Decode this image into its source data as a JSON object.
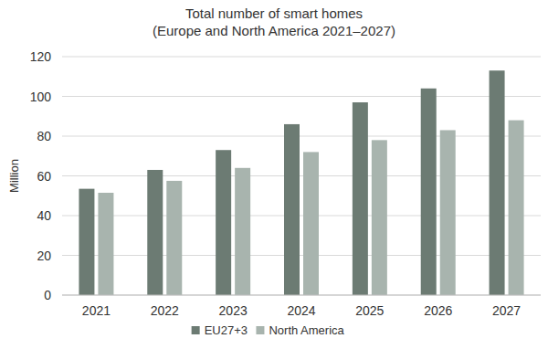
{
  "chart_data": {
    "type": "bar",
    "title": "Total number of smart homes",
    "subtitle": "(Europe and North America 2021–2027)",
    "y_label": "Million",
    "categories": [
      "2021",
      "2022",
      "2023",
      "2024",
      "2025",
      "2026",
      "2027"
    ],
    "series": [
      {
        "name": "EU27+3",
        "color": "#6c7b73",
        "values": [
          53.5,
          63,
          73,
          86,
          97,
          104,
          113
        ]
      },
      {
        "name": "North America",
        "color": "#a8b4ae",
        "values": [
          51.5,
          57.5,
          64,
          72,
          78,
          83,
          88
        ]
      }
    ],
    "ylim": [
      0,
      120
    ],
    "yticks": [
      0,
      20,
      40,
      60,
      80,
      100,
      120
    ],
    "grid": true,
    "legend": "bottom"
  }
}
